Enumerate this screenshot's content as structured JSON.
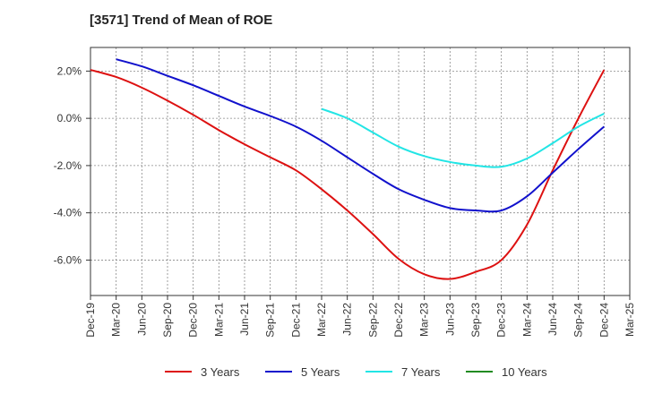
{
  "chart_data": {
    "type": "line",
    "title": "[3571]  Trend of Mean of ROE",
    "xlabel": "",
    "ylabel": "",
    "x": [
      "Dec-19",
      "Mar-20",
      "Jun-20",
      "Sep-20",
      "Dec-20",
      "Mar-21",
      "Jun-21",
      "Sep-21",
      "Dec-21",
      "Mar-22",
      "Jun-22",
      "Sep-22",
      "Dec-22",
      "Mar-23",
      "Jun-23",
      "Sep-23",
      "Dec-23",
      "Mar-24",
      "Jun-24",
      "Sep-24",
      "Dec-24",
      "Mar-25"
    ],
    "ylim": [
      -7.5,
      3.0
    ],
    "yticks": [
      2.0,
      0.0,
      -2.0,
      -4.0,
      -6.0
    ],
    "ytick_labels": [
      "2.0%",
      "0.0%",
      "-2.0%",
      "-4.0%",
      "-6.0%"
    ],
    "grid": true,
    "legend_position": "bottom",
    "series": [
      {
        "name": "3 Years",
        "color": "#dd1111",
        "values": [
          2.05,
          1.75,
          1.3,
          0.75,
          0.15,
          -0.5,
          -1.1,
          -1.65,
          -2.2,
          -3.0,
          -3.9,
          -4.9,
          -5.95,
          -6.6,
          -6.8,
          -6.5,
          -6.0,
          -4.5,
          -2.2,
          0.0,
          2.05,
          null
        ]
      },
      {
        "name": "5 Years",
        "color": "#1111cc",
        "values": [
          null,
          2.5,
          2.2,
          1.8,
          1.4,
          0.95,
          0.5,
          0.1,
          -0.35,
          -0.95,
          -1.65,
          -2.35,
          -3.0,
          -3.45,
          -3.8,
          -3.9,
          -3.9,
          -3.3,
          -2.3,
          -1.3,
          -0.35,
          null
        ]
      },
      {
        "name": "7 Years",
        "color": "#22e5e5",
        "values": [
          null,
          null,
          null,
          null,
          null,
          null,
          null,
          null,
          null,
          0.4,
          0.0,
          -0.6,
          -1.2,
          -1.6,
          -1.85,
          -2.0,
          -2.05,
          -1.7,
          -1.05,
          -0.35,
          0.2,
          null
        ]
      },
      {
        "name": "10 Years",
        "color": "#228b22",
        "values": [
          null,
          null,
          null,
          null,
          null,
          null,
          null,
          null,
          null,
          null,
          null,
          null,
          null,
          null,
          null,
          null,
          null,
          null,
          null,
          null,
          null,
          null
        ]
      }
    ]
  }
}
